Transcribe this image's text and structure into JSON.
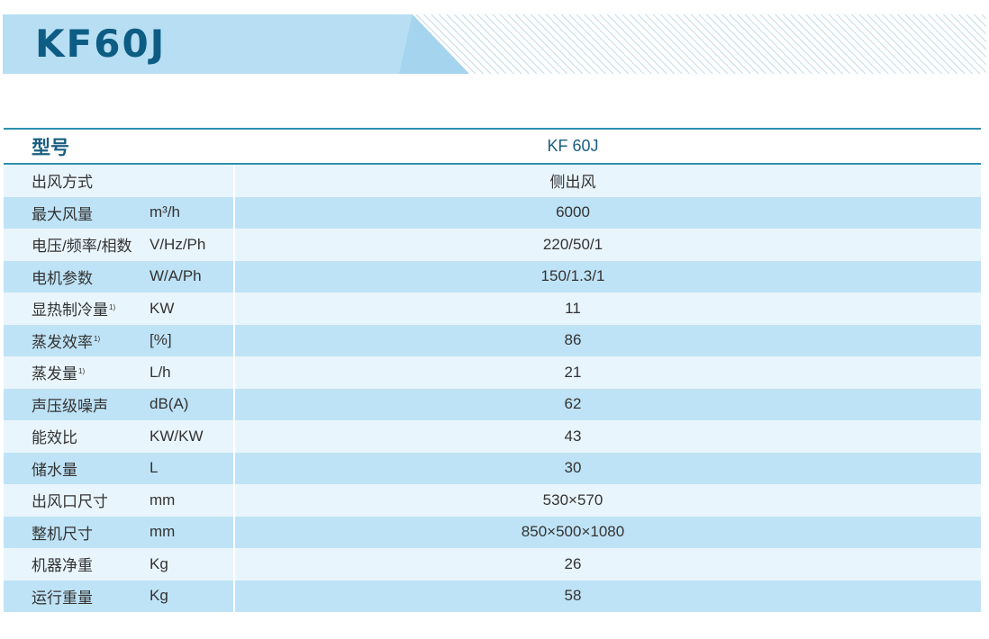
{
  "banner": {
    "title": "KF60J",
    "colors": {
      "band": "#b7def3",
      "band_dark": "#9fd0ec",
      "stripes": "#c7dde8",
      "title": "#0d5c84"
    }
  },
  "table": {
    "header": {
      "label": "型号",
      "value": "KF 60J"
    },
    "rows": [
      {
        "label": "出风方式",
        "note": "",
        "unit": "",
        "value": "侧出风"
      },
      {
        "label": "最大风量",
        "note": "",
        "unit": "m³/h",
        "value": "6000"
      },
      {
        "label": "电压/频率/相数",
        "note": "",
        "unit": "V/Hz/Ph",
        "value": "220/50/1"
      },
      {
        "label": "电机参数",
        "note": "",
        "unit": "W/A/Ph",
        "value": "150/1.3/1"
      },
      {
        "label": "显热制冷量",
        "note": "1)",
        "unit": "KW",
        "value": "11"
      },
      {
        "label": "蒸发效率",
        "note": "1)",
        "unit": "[%]",
        "value": "86"
      },
      {
        "label": "蒸发量",
        "note": "1)",
        "unit": "L/h",
        "value": "21"
      },
      {
        "label": "声压级噪声",
        "note": "",
        "unit": "dB(A)",
        "value": "62"
      },
      {
        "label": "能效比",
        "note": "",
        "unit": "KW/KW",
        "value": "43"
      },
      {
        "label": "储水量",
        "note": "",
        "unit": "L",
        "value": "30"
      },
      {
        "label": "出风口尺寸",
        "note": "",
        "unit": "mm",
        "value": "530×570"
      },
      {
        "label": "整机尺寸",
        "note": "",
        "unit": "mm",
        "value": "850×500×1080"
      },
      {
        "label": "机器净重",
        "note": "",
        "unit": "Kg",
        "value": "26"
      },
      {
        "label": "运行重量",
        "note": "",
        "unit": "Kg",
        "value": "58"
      }
    ],
    "colors": {
      "rule": "#2e8fae",
      "row_light": "#e9f5fc",
      "row_dark": "#bfe3f6",
      "header_text": "#1a5f82"
    }
  }
}
